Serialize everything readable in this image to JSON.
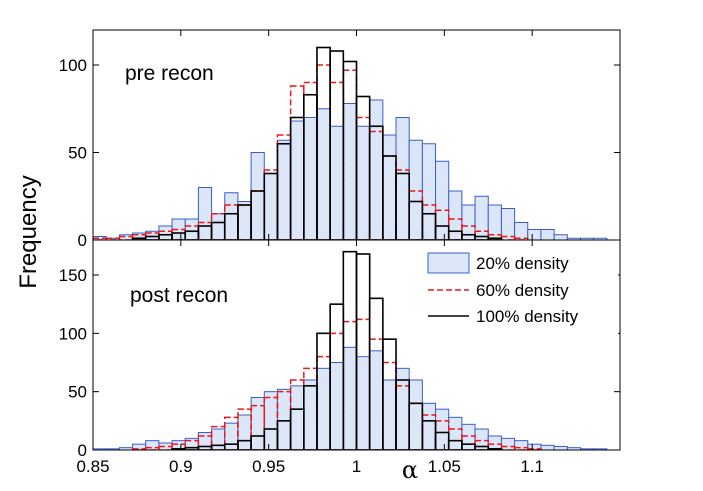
{
  "chart_data": {
    "type": "histogram",
    "ylabel": "Frequency",
    "xlabel": "α",
    "xlim": [
      0.85,
      1.15
    ],
    "x_ticks": [
      0.85,
      0.9,
      0.95,
      1,
      1.05,
      1.1
    ],
    "x_tick_labels": [
      "0.85",
      "0.9",
      "0.95",
      "1",
      "1.05",
      "1.1"
    ],
    "bin_width": 0.0075,
    "bin_starts": [
      0.85,
      0.8575,
      0.865,
      0.8725,
      0.88,
      0.8875,
      0.895,
      0.9025,
      0.91,
      0.9175,
      0.925,
      0.9325,
      0.94,
      0.9475,
      0.955,
      0.9625,
      0.97,
      0.9775,
      0.985,
      0.9925,
      1.0,
      1.0075,
      1.015,
      1.0225,
      1.03,
      1.0375,
      1.045,
      1.0525,
      1.06,
      1.0675,
      1.075,
      1.0825,
      1.09,
      1.0975,
      1.105,
      1.1125,
      1.12,
      1.1275,
      1.135,
      1.1425
    ],
    "legend": {
      "position": "upper-right",
      "entries": [
        "20% density",
        "60% density",
        "100% density"
      ]
    },
    "colors": {
      "density_20": "#3a5fcd",
      "density_20_fill": "#dbe6f8",
      "density_60": "#e8191c",
      "density_100": "#000000"
    },
    "panels": [
      {
        "title": "pre recon",
        "ylim": [
          0,
          120
        ],
        "y_ticks": [
          0,
          50,
          100
        ],
        "y_tick_labels": [
          "0",
          "50",
          "100"
        ],
        "series": [
          {
            "name": "20% density",
            "style": "filled",
            "values": [
              2,
              1,
              3,
              4,
              5,
              8,
              12,
              12,
              30,
              15,
              27,
              22,
              50,
              38,
              57,
              68,
              70,
              75,
              65,
              78,
              65,
              80,
              60,
              70,
              57,
              55,
              45,
              28,
              20,
              25,
              20,
              18,
              10,
              6,
              6,
              3,
              1,
              1,
              1,
              0
            ]
          },
          {
            "name": "60% density",
            "style": "dashed",
            "values": [
              1,
              1,
              2,
              3,
              4,
              5,
              6,
              8,
              10,
              15,
              20,
              20,
              28,
              40,
              60,
              88,
              90,
              100,
              90,
              97,
              70,
              62,
              48,
              40,
              28,
              20,
              17,
              12,
              8,
              5,
              3,
              2,
              1,
              0,
              0,
              0,
              0,
              0,
              0,
              0
            ]
          },
          {
            "name": "100% density",
            "style": "outline",
            "values": [
              0,
              0,
              0,
              1,
              2,
              3,
              4,
              5,
              8,
              10,
              15,
              20,
              28,
              38,
              55,
              70,
              83,
              110,
              108,
              102,
              82,
              65,
              48,
              38,
              22,
              15,
              8,
              5,
              3,
              2,
              1,
              0,
              0,
              0,
              0,
              0,
              0,
              0,
              0,
              0
            ]
          }
        ]
      },
      {
        "title": "post recon",
        "ylim": [
          0,
          180
        ],
        "y_ticks": [
          0,
          50,
          100,
          150
        ],
        "y_tick_labels": [
          "0",
          "50",
          "100",
          "150"
        ],
        "series": [
          {
            "name": "20% density",
            "style": "filled",
            "values": [
              1,
              1,
              2,
              5,
              8,
              6,
              8,
              10,
              15,
              18,
              23,
              30,
              45,
              50,
              52,
              55,
              60,
              70,
              75,
              88,
              80,
              85,
              60,
              70,
              60,
              40,
              35,
              28,
              22,
              18,
              12,
              10,
              8,
              5,
              4,
              3,
              2,
              1,
              1,
              0
            ]
          },
          {
            "name": "60% density",
            "style": "dashed",
            "values": [
              0,
              0,
              0,
              1,
              2,
              3,
              5,
              8,
              12,
              20,
              28,
              35,
              38,
              45,
              50,
              60,
              70,
              80,
              100,
              110,
              112,
              95,
              75,
              55,
              40,
              30,
              25,
              18,
              12,
              8,
              5,
              3,
              2,
              1,
              0,
              0,
              0,
              0,
              0,
              0
            ]
          },
          {
            "name": "100% density",
            "style": "outline",
            "values": [
              0,
              0,
              0,
              0,
              0,
              0,
              1,
              2,
              3,
              4,
              5,
              8,
              12,
              18,
              25,
              35,
              55,
              100,
              125,
              170,
              168,
              130,
              95,
              60,
              40,
              25,
              15,
              8,
              5,
              3,
              1,
              0,
              0,
              0,
              0,
              0,
              0,
              0,
              0,
              0
            ]
          }
        ]
      }
    ]
  }
}
